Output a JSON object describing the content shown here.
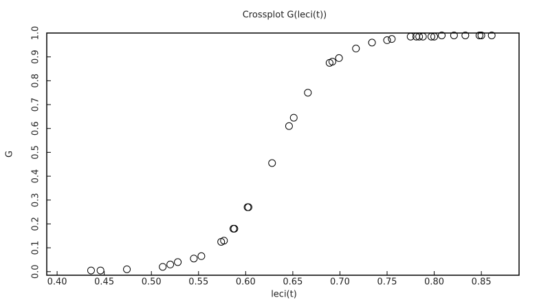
{
  "chart_data": {
    "type": "scatter",
    "title": "Crossplot G(leci(t))",
    "x_label": "leci(t)",
    "y_label": "G",
    "color": "#000000",
    "xlim": [
      0.389,
      0.89
    ],
    "ylim": [
      -0.015,
      1.0
    ],
    "xticks": [
      {
        "value": 0.4,
        "label": "0.40"
      },
      {
        "value": 0.45,
        "label": "0.45"
      },
      {
        "value": 0.5,
        "label": "0.50"
      },
      {
        "value": 0.55,
        "label": "0.55"
      },
      {
        "value": 0.6,
        "label": "0.60"
      },
      {
        "value": 0.65,
        "label": "0.65"
      },
      {
        "value": 0.7,
        "label": "0.70"
      },
      {
        "value": 0.75,
        "label": "0.75"
      },
      {
        "value": 0.8,
        "label": "0.80"
      },
      {
        "value": 0.85,
        "label": "0.85"
      }
    ],
    "yticks": [
      {
        "value": 0,
        "label": "0.0"
      },
      0.1,
      0.2,
      0.3,
      0.4,
      0.5,
      0.6,
      0.7,
      0.8,
      0.9,
      {
        "value": 1,
        "label": "1.0"
      }
    ],
    "x": [
      0.436,
      0.446,
      0.474,
      0.512,
      0.52,
      0.528,
      0.545,
      0.553,
      0.574,
      0.577,
      0.587,
      0.588,
      0.602,
      0.603,
      0.628,
      0.646,
      0.651,
      0.666,
      0.689,
      0.692,
      0.699,
      0.717,
      0.734,
      0.75,
      0.755,
      0.775,
      0.781,
      0.784,
      0.788,
      0.797,
      0.8,
      0.808,
      0.821,
      0.833,
      0.848,
      0.85,
      0.861
    ],
    "values": [
      0.005,
      0.005,
      0.01,
      0.02,
      0.03,
      0.04,
      0.055,
      0.065,
      0.125,
      0.13,
      0.18,
      0.18,
      0.27,
      0.27,
      0.455,
      0.61,
      0.645,
      0.75,
      0.875,
      0.88,
      0.895,
      0.935,
      0.96,
      0.97,
      0.975,
      0.985,
      0.985,
      0.985,
      0.985,
      0.985,
      0.985,
      0.99,
      0.99,
      0.99,
      0.99,
      0.99,
      0.99
    ]
  }
}
